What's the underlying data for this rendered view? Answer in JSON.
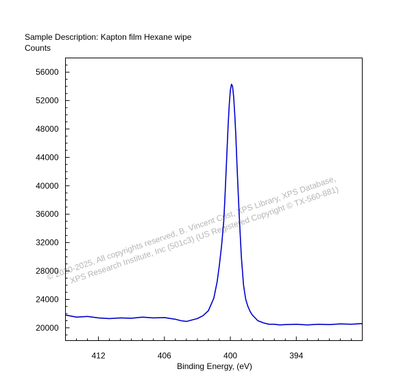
{
  "header": {
    "description": "Sample Description:  Kapton film Hexane wipe",
    "ylabel": "Counts"
  },
  "watermark": {
    "line1": "©  2020-2025,  All copyrights reserved,   B. Vincent Crist,  XPS Library, XPS Database,",
    "line2": "XPS Research Institute, Inc (501c3)   (US Registered Copyright © TX-560-881)"
  },
  "chart_data": {
    "type": "line",
    "title": "Sample Description:  Kapton film Hexane wipe",
    "xlabel": "Binding Energy, (eV)",
    "ylabel": "Counts",
    "xlim": [
      415.0,
      388.0
    ],
    "ylim": [
      18200,
      58000
    ],
    "x_reversed": true,
    "x_ticks": [
      412,
      406,
      400,
      394
    ],
    "x_tick_labels": [
      "412",
      "406",
      "400",
      "394"
    ],
    "y_ticks": [
      20000,
      24000,
      28000,
      32000,
      36000,
      40000,
      44000,
      48000,
      52000,
      56000
    ],
    "y_tick_labels": [
      "20000",
      "24000",
      "28000",
      "32000",
      "36000",
      "40000",
      "44000",
      "48000",
      "52000",
      "56000"
    ],
    "line_color": "#0000cc",
    "grid": false,
    "series": [
      {
        "x": [
          415.0,
          414.0,
          413.0,
          412.0,
          411.0,
          410.0,
          409.0,
          408.0,
          407.0,
          406.0,
          405.0,
          404.5,
          404.0,
          403.5,
          403.0,
          402.5,
          402.0,
          401.5,
          401.2,
          401.0,
          400.8,
          400.6,
          400.5,
          400.4,
          400.3,
          400.2,
          400.1,
          400.0,
          399.9,
          399.8,
          399.7,
          399.6,
          399.5,
          399.4,
          399.2,
          399.0,
          398.8,
          398.6,
          398.4,
          398.2,
          398.0,
          397.5,
          397.0,
          396.5,
          396.0,
          395.5,
          395.0,
          394.0,
          393.0,
          392.0,
          391.0,
          390.0,
          389.0,
          388.0
        ],
        "y": [
          21800,
          21500,
          21600,
          21400,
          21300,
          21400,
          21350,
          21500,
          21400,
          21450,
          21200,
          21000,
          20900,
          21100,
          21300,
          21700,
          22400,
          24200,
          26500,
          28800,
          31500,
          35000,
          38000,
          41500,
          45000,
          48500,
          51500,
          53500,
          54300,
          54000,
          52500,
          50000,
          47000,
          43000,
          36000,
          30000,
          26000,
          24000,
          23000,
          22300,
          21800,
          21000,
          20700,
          20500,
          20500,
          20400,
          20450,
          20500,
          20400,
          20500,
          20450,
          20550,
          20500,
          20600
        ]
      }
    ]
  }
}
